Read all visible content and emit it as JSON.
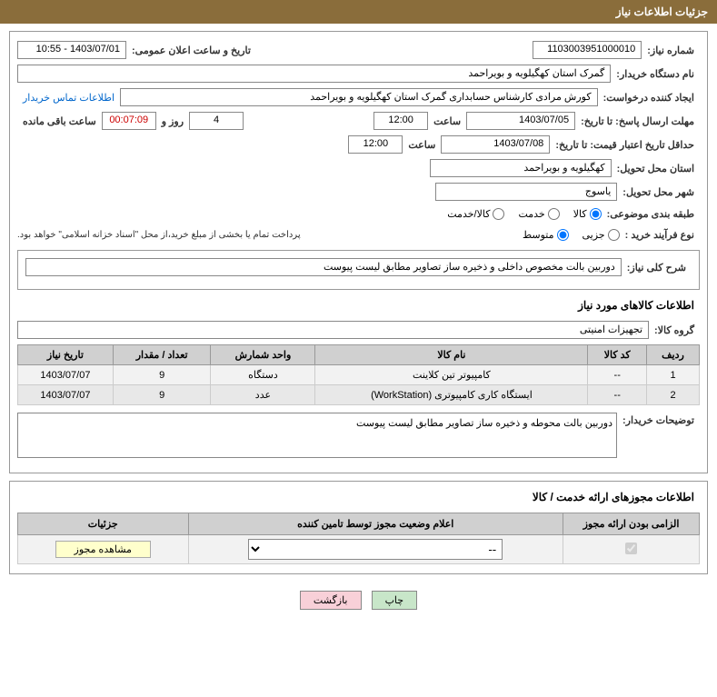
{
  "header": {
    "title": "جزئیات اطلاعات نیاز"
  },
  "labels": {
    "need_no": "شماره نیاز:",
    "announce_dt": "تاریخ و ساعت اعلان عمومی:",
    "buyer_org": "نام دستگاه خریدار:",
    "requester": "ایجاد کننده درخواست:",
    "contact_link": "اطلاعات تماس خریدار",
    "response_deadline": "مهلت ارسال پاسخ: تا تاریخ:",
    "hour": "ساعت",
    "days_and": "روز و",
    "remaining": "ساعت باقی مانده",
    "price_valid_min": "حداقل تاریخ اعتبار قیمت: تا تاریخ:",
    "delivery_province": "استان محل تحویل:",
    "delivery_city": "شهر محل تحویل:",
    "category": "طبقه بندی موضوعی:",
    "cat_goods": "کالا",
    "cat_service": "خدمت",
    "cat_both": "کالا/خدمت",
    "purchase_type": "نوع فرآیند خرید :",
    "pt_partial": "جزیی",
    "pt_medium": "متوسط",
    "payment_note": "پرداخت تمام یا بخشی از مبلغ خرید،از محل \"اسناد خزانه اسلامی\" خواهد بود.",
    "need_desc": "شرح کلی نیاز:",
    "goods_info": "اطلاعات کالاهای مورد نیاز",
    "goods_group": "گروه کالا:",
    "buyer_notes": "توضیحات خریدار:",
    "license_info": "اطلاعات مجوزهای ارائه خدمت / کالا",
    "print": "چاپ",
    "back": "بازگشت",
    "view_license": "مشاهده مجوز"
  },
  "values": {
    "need_no": "1103003951000010",
    "announce_dt": "1403/07/01 - 10:55",
    "buyer_org": "گمرک استان کهگیلویه و بویراحمد",
    "requester": "کورش مرادی کارشناس حسابداری گمرک استان کهگیلویه و بویراحمد",
    "resp_date": "1403/07/05",
    "resp_time": "12:00",
    "days_left": "4",
    "countdown": "00:07:09",
    "price_date": "1403/07/08",
    "price_time": "12:00",
    "province": "کهگیلویه و بویراحمد",
    "city": "یاسوج",
    "need_desc": "دوربین بالت مخصوص داخلی و ذخیره ساز تصاویر  مطابق لیست پیوست",
    "goods_group": "تجهیزات امنیتی",
    "buyer_notes": "دوربین بالت محوطه و ذخیره ساز تصاویر مطابق لیست پیوست"
  },
  "goods_table": {
    "headers": {
      "row": "ردیف",
      "code": "کد کالا",
      "name": "نام کالا",
      "unit": "واحد شمارش",
      "qty": "تعداد / مقدار",
      "date": "تاریخ نیاز"
    },
    "rows": [
      {
        "row": "1",
        "code": "--",
        "name": "کامپیوتر تین کلاینت",
        "unit": "دستگاه",
        "qty": "9",
        "date": "1403/07/07"
      },
      {
        "row": "2",
        "code": "--",
        "name": "ایستگاه کاری کامپیوتری (WorkStation)",
        "unit": "عدد",
        "qty": "9",
        "date": "1403/07/07"
      }
    ]
  },
  "license_table": {
    "headers": {
      "mandatory": "الزامی بودن ارائه مجوز",
      "status": "اعلام وضعیت مجوز توسط تامین کننده",
      "details": "جزئیات"
    },
    "select_placeholder": "--"
  }
}
